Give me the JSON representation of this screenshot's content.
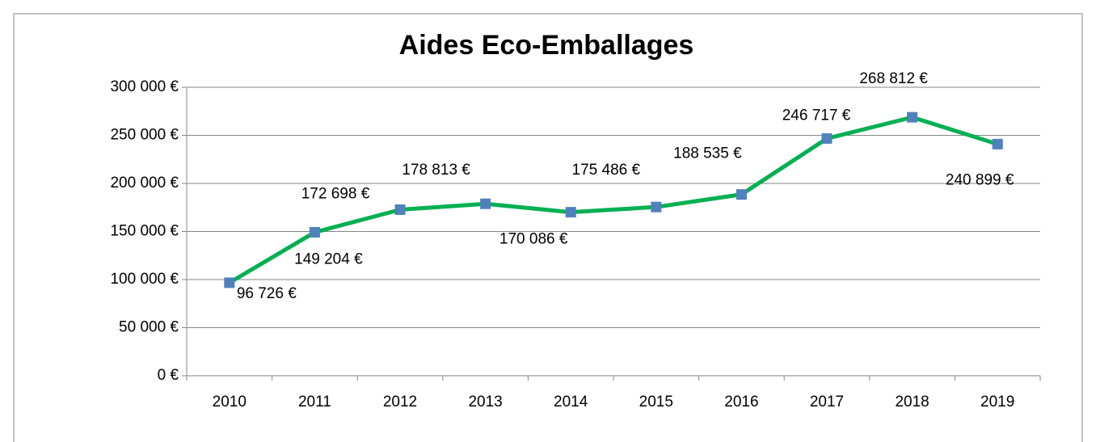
{
  "chart_data": {
    "type": "line",
    "title": "Aides Eco-Emballages",
    "categories": [
      "2010",
      "2011",
      "2012",
      "2013",
      "2014",
      "2015",
      "2016",
      "2017",
      "2018",
      "2019"
    ],
    "series": [
      {
        "name": "Aides Eco-Emballages",
        "color": "#00b050",
        "marker_color": "#4f81bd",
        "values": [
          96726,
          149204,
          172698,
          178813,
          170086,
          175486,
          188535,
          246717,
          268812,
          240899
        ],
        "value_labels": [
          "96 726 €",
          "149 204 €",
          "172 698 €",
          "178 813 €",
          "170 086 €",
          "175 486 €",
          "188 535 €",
          "246 717 €",
          "268 812 €",
          "240 899 €"
        ]
      }
    ],
    "ylim": [
      0,
      300000
    ],
    "yticks": [
      {
        "value": 0,
        "label": "0 €"
      },
      {
        "value": 50000,
        "label": "50 000 €"
      },
      {
        "value": 100000,
        "label": "100 000 €"
      },
      {
        "value": 150000,
        "label": "150 000 €"
      },
      {
        "value": 200000,
        "label": "200 000 €"
      },
      {
        "value": 250000,
        "label": "250 000 €"
      },
      {
        "value": 300000,
        "label": "300 000 €"
      }
    ],
    "grid": true
  }
}
